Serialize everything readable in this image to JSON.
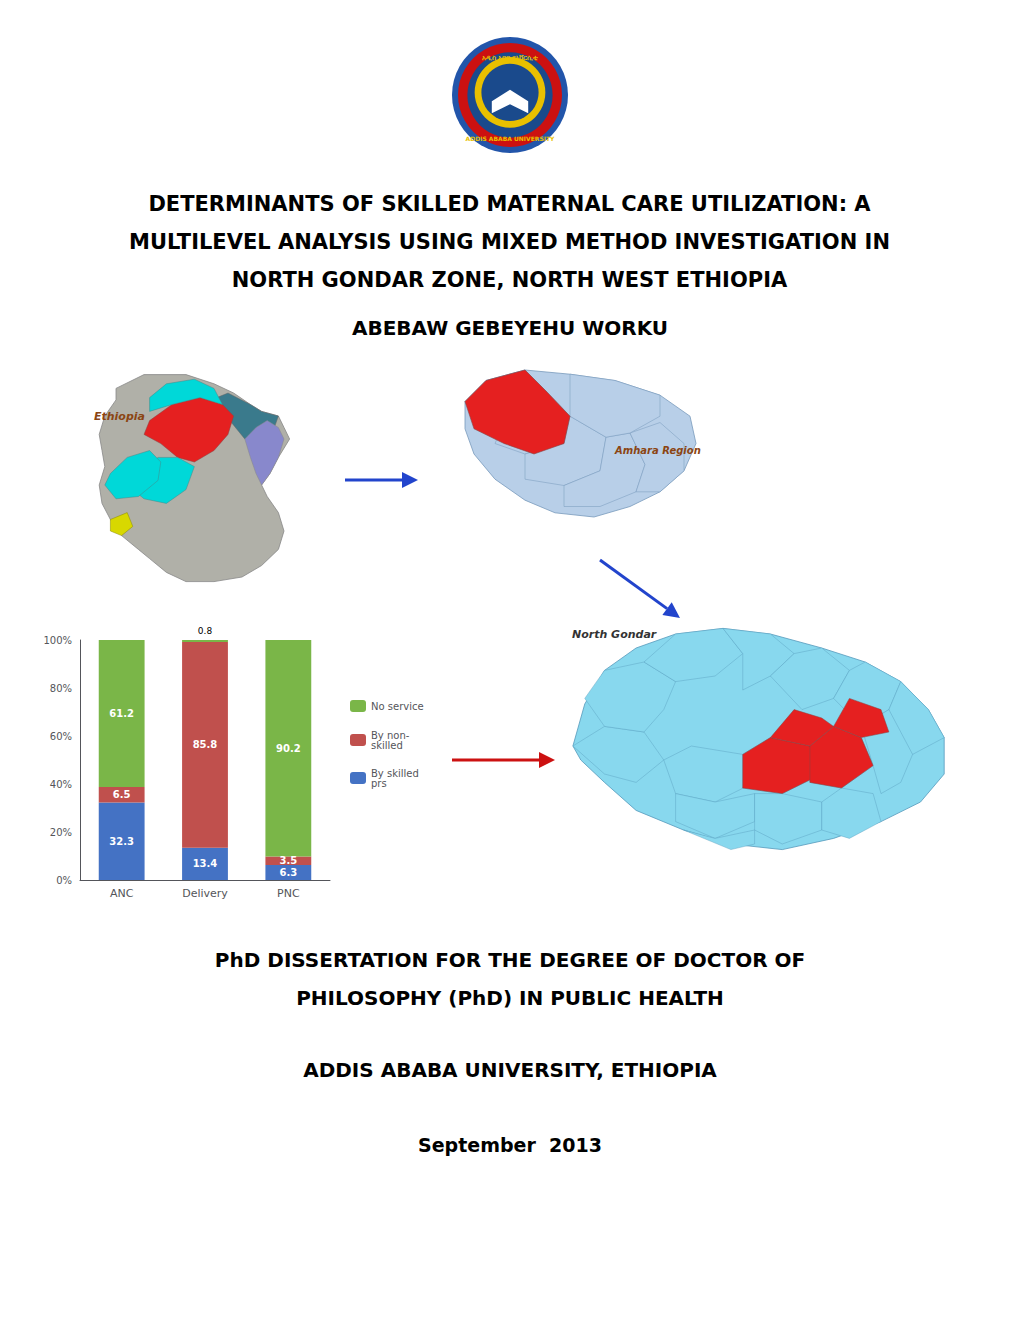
{
  "chart_data": {
    "type": "bar",
    "title": "DETERMINANTS OF SKILLED MATERNAL CARE UTILIZATION: A\nMULTILEVEL ANALYSIS USING MIXED METHOD INVESTIGATION IN\nNORTH GONDAR ZONE, NORTH WEST ETHIOPIA",
    "annotations": [
      "ABEBAW GEBEYEHU WORKU",
      "Ethiopia",
      "Amhara Region",
      "North Gondar",
      "PhD DISSERTATION FOR THE DEGREE OF DOCTOR OF",
      "PHILOSOPHY (PhD) IN PUBLIC HEALTH",
      "ADDIS ABABA UNIVERSITY, ETHIOPIA",
      "September  2013",
      "አዲስ አበባ ዩኒቨርሲቲ",
      "ADDIS ABABA UNIVERSITY"
    ],
    "categories": [
      "ANC",
      "Delivery",
      "PNC"
    ],
    "series": [
      {
        "name": "By skilled\nprs",
        "color": "#4472c4",
        "values": [
          32.3,
          13.4,
          6.3
        ]
      },
      {
        "name": "By non-\nskilled",
        "color": "#c0504d",
        "values": [
          6.5,
          85.8,
          3.5
        ]
      },
      {
        "name": "No service",
        "color": "#7ab648",
        "values": [
          61.2,
          0.8,
          90.2
        ]
      }
    ],
    "stacked": true,
    "data_labels": true,
    "legend": "right",
    "grid": false,
    "ylim": [
      0,
      100
    ],
    "yticks": [
      {
        "value": 0,
        "label": "0%"
      },
      {
        "value": 20,
        "label": "20%"
      },
      {
        "value": 40,
        "label": "40%"
      },
      {
        "value": 60,
        "label": "60%"
      },
      {
        "value": 80,
        "label": "80%"
      },
      {
        "value": 100,
        "label": "100%"
      }
    ]
  }
}
